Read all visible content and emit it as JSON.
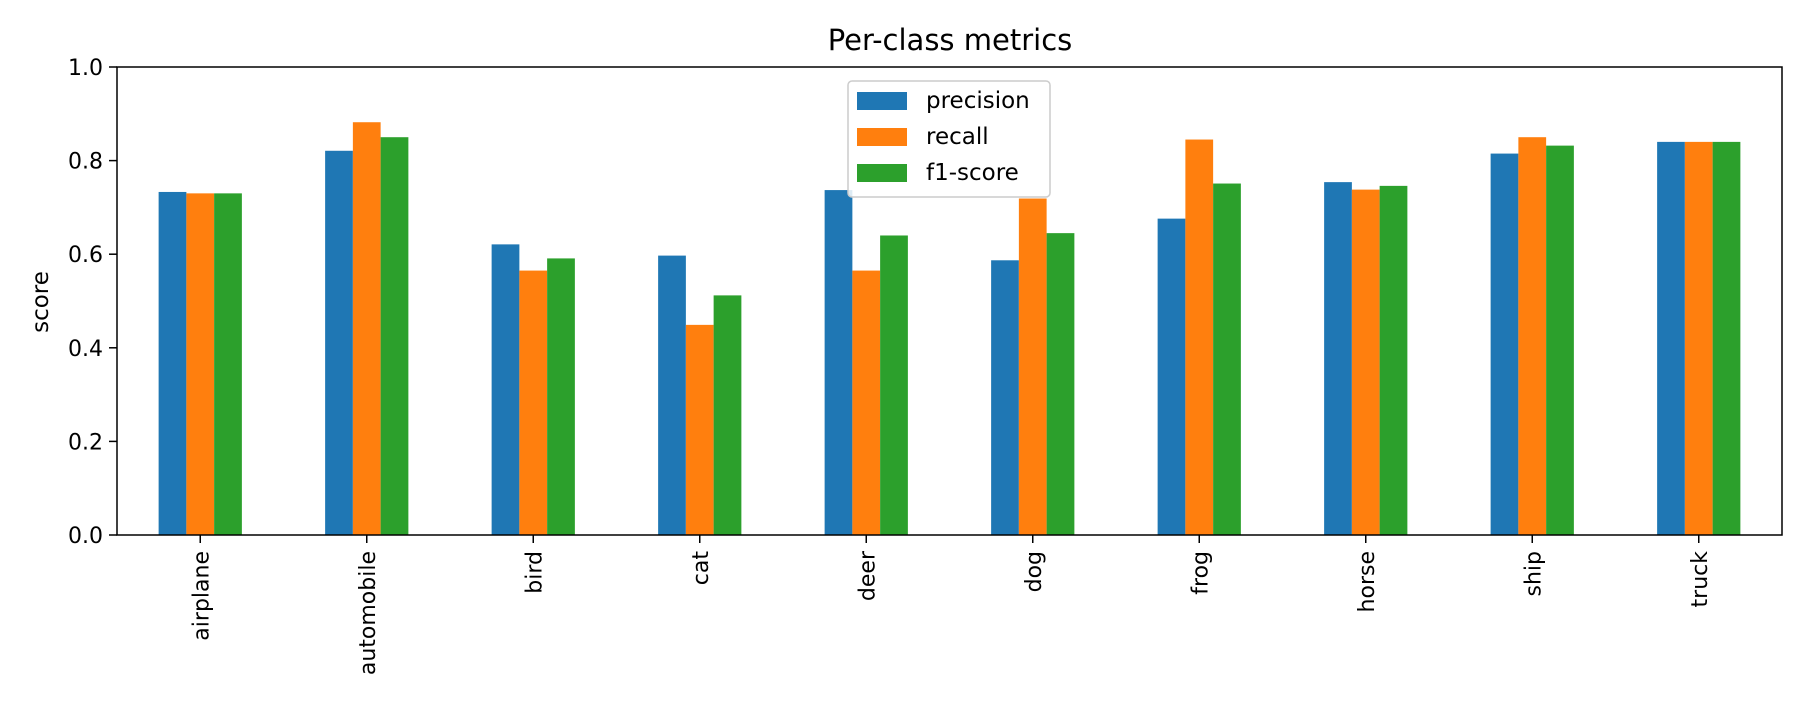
{
  "chart_data": {
    "type": "bar",
    "title": "Per-class metrics",
    "xlabel": "",
    "ylabel": "score",
    "ylim": [
      0,
      1
    ],
    "yticks": [
      0.0,
      0.2,
      0.4,
      0.6,
      0.8,
      1.0
    ],
    "ytick_labels": [
      "0.0",
      "0.2",
      "0.4",
      "0.6",
      "0.8",
      "1.0"
    ],
    "categories": [
      "airplane",
      "automobile",
      "bird",
      "cat",
      "deer",
      "dog",
      "frog",
      "horse",
      "ship",
      "truck"
    ],
    "series": [
      {
        "name": "precision",
        "color": "#1f77b4",
        "values": [
          0.733,
          0.821,
          0.621,
          0.597,
          0.737,
          0.587,
          0.676,
          0.754,
          0.815,
          0.84
        ]
      },
      {
        "name": "recall",
        "color": "#ff7f0e",
        "values": [
          0.73,
          0.882,
          0.565,
          0.449,
          0.565,
          0.719,
          0.845,
          0.738,
          0.85,
          0.84
        ]
      },
      {
        "name": "f1-score",
        "color": "#2ca02c",
        "values": [
          0.73,
          0.85,
          0.591,
          0.512,
          0.64,
          0.645,
          0.751,
          0.746,
          0.832,
          0.84
        ]
      }
    ],
    "grid": false,
    "legend_position": "upper center"
  }
}
